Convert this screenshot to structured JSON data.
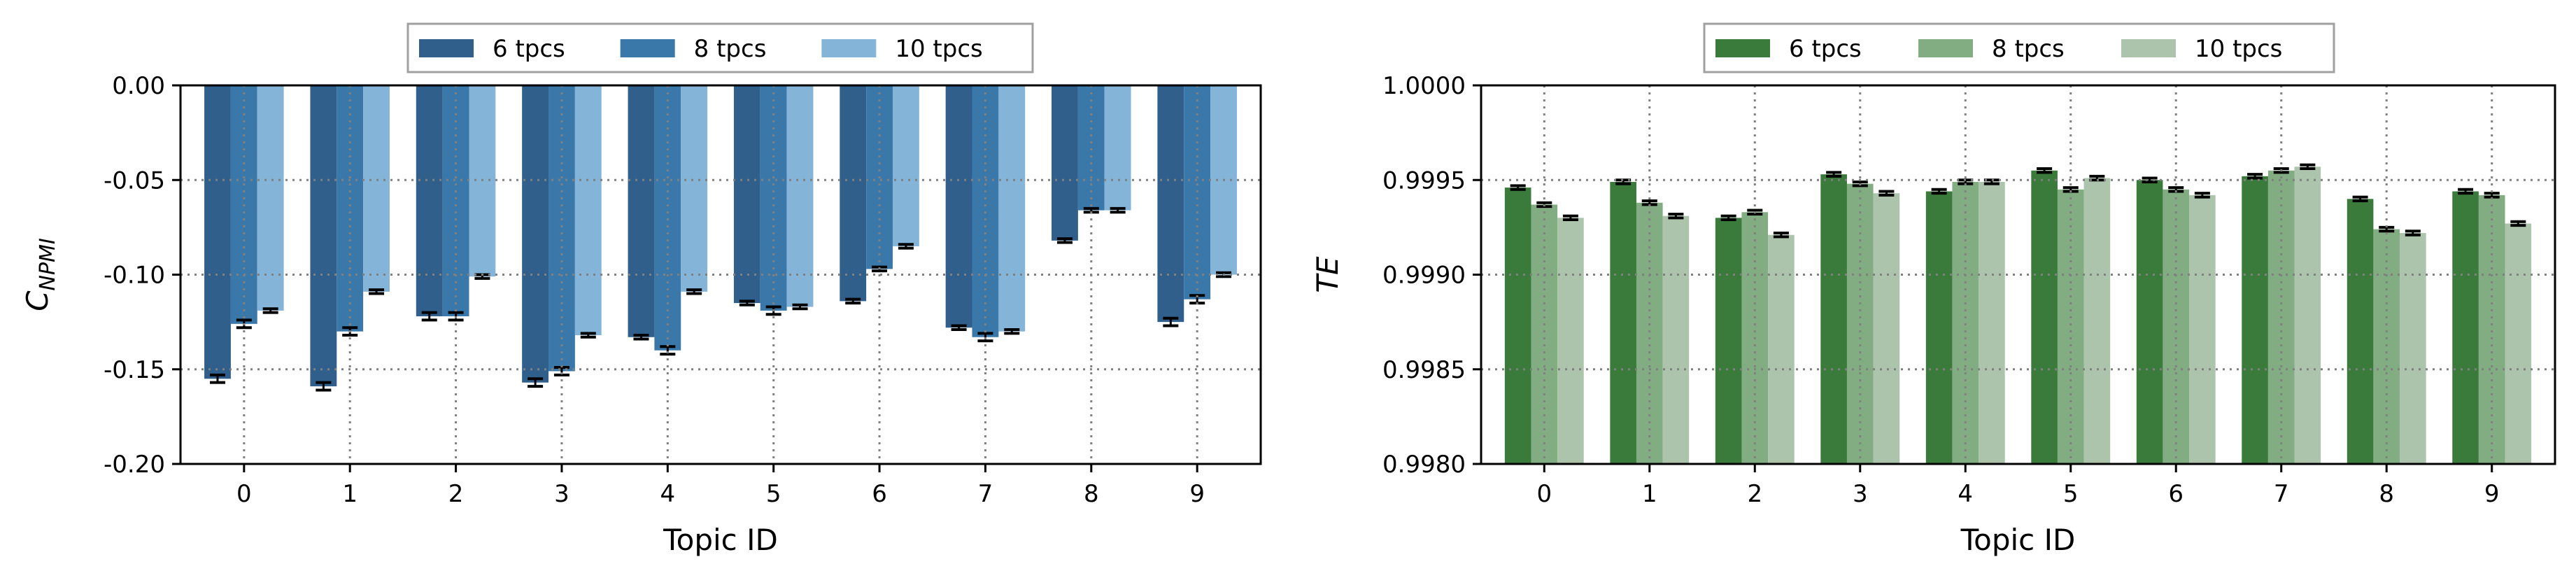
{
  "chart_data": [
    {
      "type": "bar",
      "xlabel": "Topic ID",
      "ylabel": "C",
      "ylabel_sub": "NPMI",
      "categories": [
        "0",
        "1",
        "2",
        "3",
        "4",
        "5",
        "6",
        "7",
        "8",
        "9"
      ],
      "ylim": [
        -0.2,
        0.0
      ],
      "yticks": [
        "0.00",
        "-0.05",
        "-0.10",
        "-0.15",
        "-0.20"
      ],
      "ytick_values": [
        0.0,
        -0.05,
        -0.1,
        -0.15,
        -0.2
      ],
      "grid": true,
      "legend_position": "top-center",
      "series": [
        {
          "name": "6 tpcs",
          "color": "#2f5f8a",
          "values": [
            -0.155,
            -0.159,
            -0.122,
            -0.157,
            -0.133,
            -0.115,
            -0.114,
            -0.128,
            -0.082,
            -0.125
          ],
          "errors": [
            0.002,
            0.002,
            0.002,
            0.002,
            0.001,
            0.001,
            0.001,
            0.001,
            0.001,
            0.002
          ]
        },
        {
          "name": "8 tpcs",
          "color": "#3a78aa",
          "values": [
            -0.126,
            -0.13,
            -0.122,
            -0.151,
            -0.14,
            -0.119,
            -0.097,
            -0.133,
            -0.066,
            -0.113
          ],
          "errors": [
            0.002,
            0.002,
            0.002,
            0.002,
            0.002,
            0.002,
            0.001,
            0.002,
            0.001,
            0.002
          ]
        },
        {
          "name": "10 tpcs",
          "color": "#85b4d9",
          "values": [
            -0.119,
            -0.109,
            -0.101,
            -0.132,
            -0.109,
            -0.117,
            -0.085,
            -0.13,
            -0.066,
            -0.1
          ],
          "errors": [
            0.001,
            0.001,
            0.001,
            0.001,
            0.001,
            0.001,
            0.001,
            0.001,
            0.001,
            0.001
          ]
        }
      ]
    },
    {
      "type": "bar",
      "xlabel": "Topic ID",
      "ylabel": "TE",
      "categories": [
        "0",
        "1",
        "2",
        "3",
        "4",
        "5",
        "6",
        "7",
        "8",
        "9"
      ],
      "ylim": [
        0.998,
        1.0
      ],
      "yticks": [
        "1.0000",
        "0.9995",
        "0.9990",
        "0.9985",
        "0.9980"
      ],
      "ytick_values": [
        1.0,
        0.9995,
        0.999,
        0.9985,
        0.998
      ],
      "grid": true,
      "legend_position": "top-center",
      "series": [
        {
          "name": "6 tpcs",
          "color": "#3a7a3a",
          "values": [
            0.99946,
            0.99949,
            0.9993,
            0.99953,
            0.99944,
            0.99955,
            0.9995,
            0.99952,
            0.9994,
            0.99944
          ],
          "errors": [
            1e-05,
            1e-05,
            1e-05,
            1e-05,
            1e-05,
            1e-05,
            1e-05,
            1e-05,
            1e-05,
            1e-05
          ]
        },
        {
          "name": "8 tpcs",
          "color": "#82ad82",
          "values": [
            0.99937,
            0.99938,
            0.99933,
            0.99948,
            0.99949,
            0.99945,
            0.99945,
            0.99955,
            0.99924,
            0.99942
          ],
          "errors": [
            1e-05,
            1e-05,
            1e-05,
            1e-05,
            1e-05,
            1e-05,
            1e-05,
            1e-05,
            1e-05,
            1e-05
          ]
        },
        {
          "name": "10 tpcs",
          "color": "#abc4ab",
          "values": [
            0.9993,
            0.99931,
            0.99921,
            0.99943,
            0.99949,
            0.99951,
            0.99942,
            0.99957,
            0.99922,
            0.99927
          ],
          "errors": [
            1e-05,
            1e-05,
            1e-05,
            1e-05,
            1e-05,
            1e-05,
            1e-05,
            1e-05,
            1e-05,
            1e-05
          ]
        }
      ]
    }
  ]
}
